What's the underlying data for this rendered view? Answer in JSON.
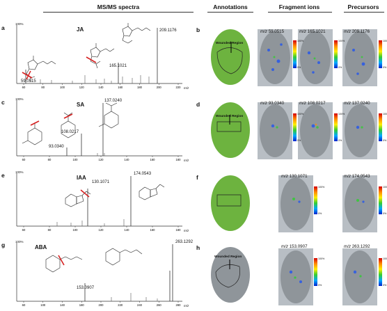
{
  "headers": {
    "msms": "MS/MS spectra",
    "annotations": "Annotations",
    "fragments": "Fragment ions",
    "precursors": "Precursors"
  },
  "axis": {
    "percent": "100%",
    "xunit": "m/z",
    "mz_prefix": "m/z"
  },
  "spectra": [
    {
      "letter": "a",
      "compound": "JA",
      "peak_labels": [
        "209.1176",
        "165.1021",
        "59.0515"
      ],
      "ticks": [
        "60",
        "80",
        "100",
        "120",
        "140",
        "160",
        "180",
        "200",
        "220"
      ]
    },
    {
      "letter": "c",
      "compound": "SA",
      "peak_labels": [
        "137.0240",
        "108.0217",
        "93.0340"
      ],
      "ticks": [
        "60",
        "80",
        "100",
        "120",
        "140",
        "160",
        "180"
      ]
    },
    {
      "letter": "e",
      "compound": "IAA",
      "peak_labels": [
        "174.0543",
        "130.1071"
      ],
      "ticks": [
        "60",
        "80",
        "100",
        "120",
        "140",
        "160",
        "180"
      ]
    },
    {
      "letter": "g",
      "compound": "ABA",
      "peak_labels": [
        "263.1292",
        "153.0907"
      ],
      "ticks": [
        "60",
        "100",
        "140",
        "180",
        "200",
        "220",
        "240",
        "260",
        "280"
      ]
    }
  ],
  "images": [
    {
      "letter": "b",
      "annotation": "Wounded Region",
      "fragments": [
        "59.0515",
        "165.1021"
      ],
      "precursor": "209.1176"
    },
    {
      "letter": "d",
      "annotation": "Wounded Region",
      "fragments": [
        "93.0340",
        "108.0217"
      ],
      "precursor": "137.0240"
    },
    {
      "letter": "f",
      "annotation": "",
      "fragments": [
        "130.1071"
      ],
      "precursor": "174.0543"
    },
    {
      "letter": "h",
      "annotation": "Wounded Region",
      "fragments": [
        "153.0907"
      ],
      "precursor": "263.1292"
    }
  ],
  "scale": {
    "top": "100%",
    "bottom": "0%"
  },
  "colors": {
    "leaf_green": "#6db33f",
    "leaf_gray": "#8f959a",
    "fragment_cut": "#d62020",
    "outline": "#222222"
  }
}
